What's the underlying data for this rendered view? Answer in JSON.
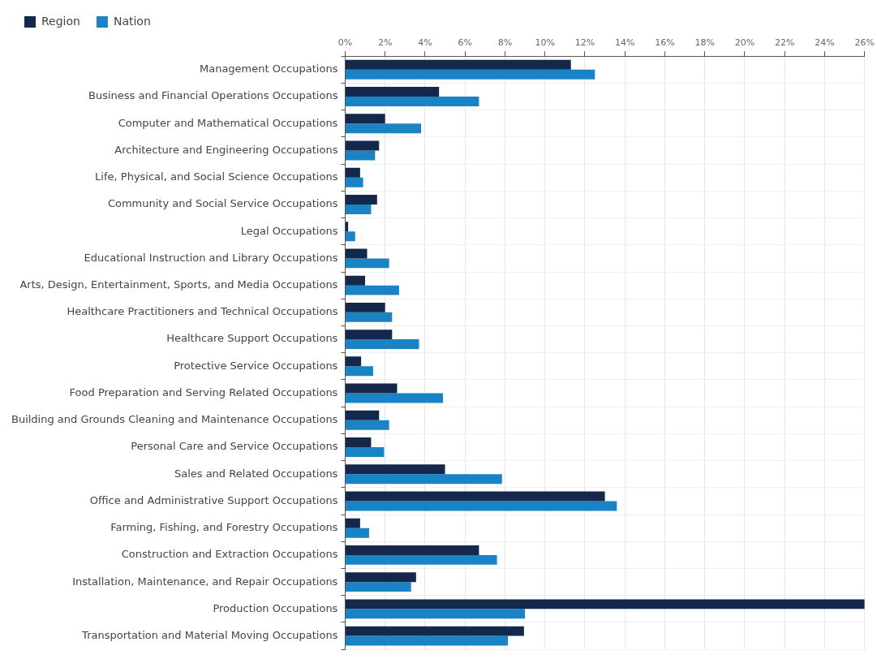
{
  "chart_data": {
    "type": "bar",
    "orientation": "horizontal",
    "categories": [
      "Management Occupations",
      "Business and Financial Operations Occupations",
      "Computer and Mathematical Occupations",
      "Architecture and Engineering Occupations",
      "Life, Physical, and Social Science Occupations",
      "Community and Social Service Occupations",
      "Legal Occupations",
      "Educational Instruction and Library Occupations",
      "Arts, Design, Entertainment, Sports, and Media Occupations",
      "Healthcare Practitioners and Technical Occupations",
      "Healthcare Support Occupations",
      "Protective Service Occupations",
      "Food Preparation and Serving Related Occupations",
      "Building and Grounds Cleaning and Maintenance Occupations",
      "Personal Care and Service Occupations",
      "Sales and Related Occupations",
      "Office and Administrative Support Occupations",
      "Farming, Fishing, and Forestry Occupations",
      "Construction and Extraction Occupations",
      "Installation, Maintenance, and Repair Occupations",
      "Production Occupations",
      "Transportation and Material Moving Occupations"
    ],
    "series": [
      {
        "name": "Region",
        "color": "#14284b",
        "values": [
          11.3,
          4.7,
          2.0,
          1.7,
          0.75,
          1.6,
          0.15,
          1.1,
          1.0,
          2.0,
          2.35,
          0.8,
          2.6,
          1.7,
          1.3,
          5.0,
          13.0,
          0.75,
          6.7,
          3.55,
          26,
          8.95
        ]
      },
      {
        "name": "Nation",
        "color": "#1a83c6",
        "values": [
          12.5,
          6.7,
          3.8,
          1.5,
          0.9,
          1.3,
          0.5,
          2.2,
          2.7,
          2.35,
          3.7,
          1.4,
          4.9,
          2.2,
          1.95,
          7.85,
          13.6,
          1.2,
          7.6,
          3.3,
          9.0,
          8.15
        ]
      }
    ],
    "xlim": [
      0,
      26
    ],
    "xticks": [
      {
        "value": 0,
        "label": "0%"
      },
      {
        "value": 2,
        "label": "2%"
      },
      {
        "value": 4,
        "label": "4%"
      },
      {
        "value": 6,
        "label": "6%"
      },
      {
        "value": 8,
        "label": "8%"
      },
      {
        "value": 10,
        "label": "10%"
      },
      {
        "value": 12,
        "label": "12%"
      },
      {
        "value": 14,
        "label": "14%"
      },
      {
        "value": 16,
        "label": "16%"
      },
      {
        "value": 18,
        "label": "18%"
      },
      {
        "value": 20,
        "label": "20%"
      },
      {
        "value": 22,
        "label": "22%"
      },
      {
        "value": 24,
        "label": "24%"
      },
      {
        "value": 26,
        "label": "26%"
      }
    ],
    "grid": true,
    "legend": "top left"
  }
}
